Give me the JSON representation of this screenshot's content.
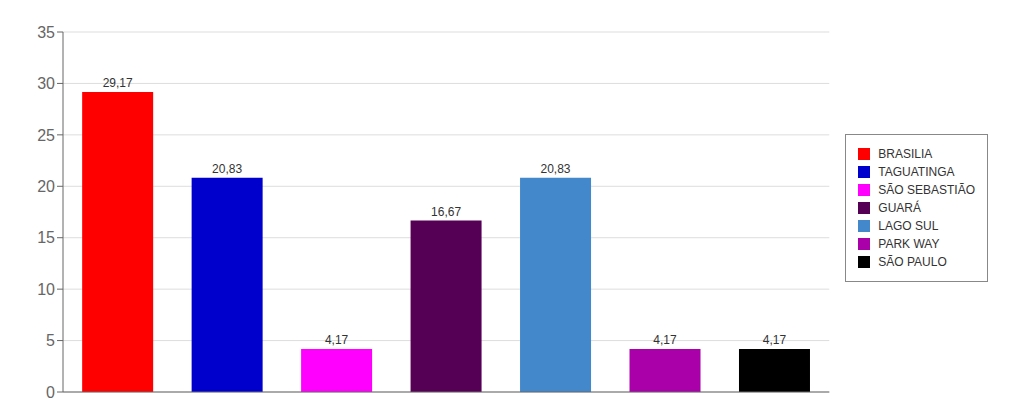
{
  "chart_data": {
    "type": "bar",
    "categories": [
      "BRASILIA",
      "TAGUATINGA",
      "SÃO SEBASTIÃO",
      "GUARÁ",
      "LAGO SUL",
      "PARK WAY",
      "SÃO PAULO"
    ],
    "values": [
      29.17,
      20.83,
      4.17,
      16.67,
      20.83,
      4.17,
      4.17
    ],
    "value_labels": [
      "29,17",
      "20,83",
      "4,17",
      "16,67",
      "20,83",
      "4,17",
      "4,17"
    ],
    "colors": [
      "#ff0000",
      "#0000cc",
      "#ff00ff",
      "#550055",
      "#4488cc",
      "#aa00aa",
      "#000000"
    ],
    "ylim": [
      0,
      35
    ],
    "yticks": [
      0,
      5,
      10,
      15,
      20,
      25,
      30,
      35
    ],
    "grid": true,
    "legend": "right",
    "data_labels": true,
    "tick_labels": "y"
  }
}
